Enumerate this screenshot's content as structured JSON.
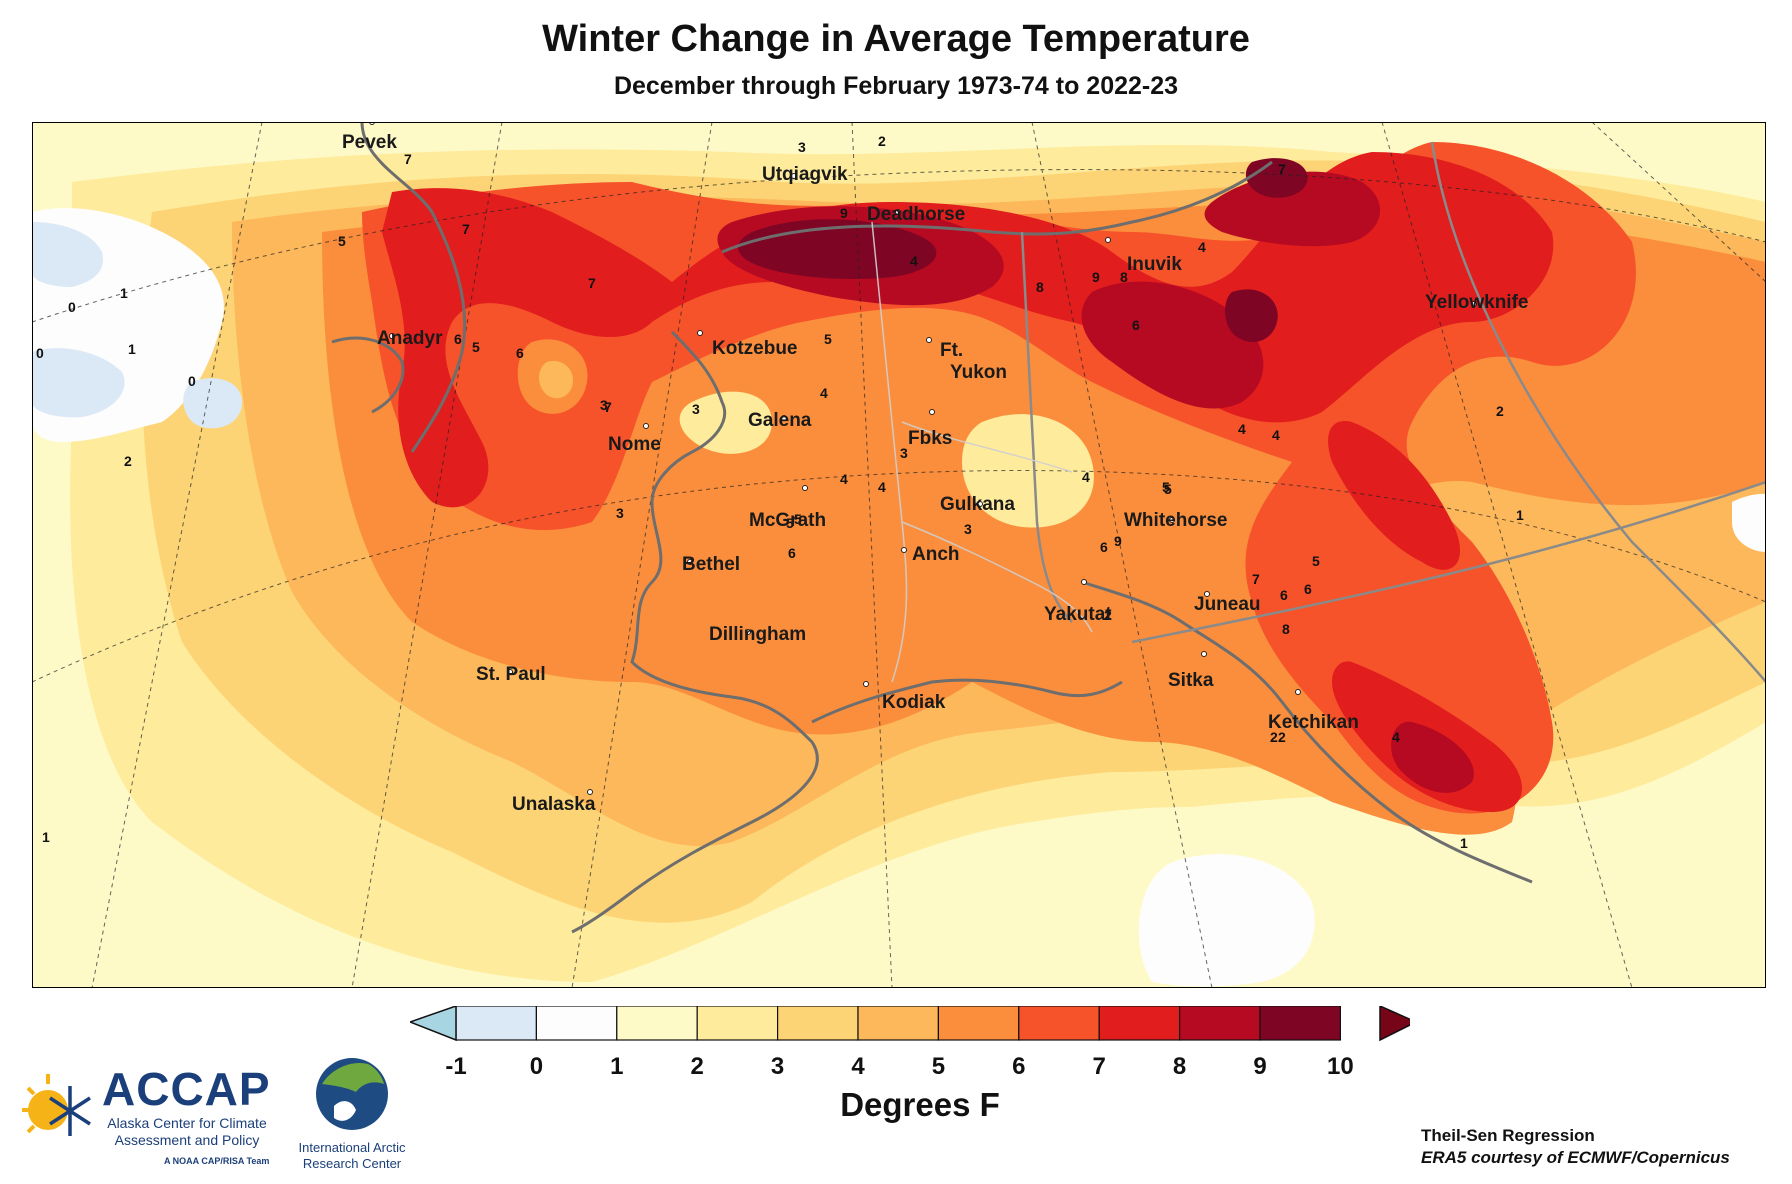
{
  "header": {
    "title": "Winter Change in Average Temperature",
    "subtitle": "December through February 1973-74 to 2022-23"
  },
  "cities": [
    {
      "name": "Pevek"
    },
    {
      "name": "Utqiagvik"
    },
    {
      "name": "Deadhorse"
    },
    {
      "name": "Inuvik"
    },
    {
      "name": "Yellowknife"
    },
    {
      "name": "Anadyr"
    },
    {
      "name": "Kotzebue"
    },
    {
      "name": "Ft."
    },
    {
      "name": "Yukon"
    },
    {
      "name": "Galena"
    },
    {
      "name": "Nome"
    },
    {
      "name": "Fbks"
    },
    {
      "name": "Gulkana"
    },
    {
      "name": "Whitehorse"
    },
    {
      "name": "McGrath"
    },
    {
      "name": "Bethel"
    },
    {
      "name": "Anch"
    },
    {
      "name": "Yakutat"
    },
    {
      "name": "Juneau"
    },
    {
      "name": "Dillingham"
    },
    {
      "name": "Sitka"
    },
    {
      "name": "St. Paul"
    },
    {
      "name": "Kodiak"
    },
    {
      "name": "Ketchikan"
    },
    {
      "name": "Unalaska"
    }
  ],
  "contour_labels": [
    "0",
    "1",
    "0",
    "1",
    "0",
    "2",
    "5",
    "7",
    "7",
    "6",
    "5",
    "7",
    "6",
    "7",
    "3",
    "3",
    "3",
    "3",
    "9",
    "2",
    "4",
    "5",
    "4",
    "4",
    "3",
    "4",
    "4",
    "5",
    "6",
    "5",
    "3",
    "2",
    "6",
    "8",
    "9",
    "8",
    "7",
    "5",
    "6",
    "4",
    "4",
    "5",
    "6",
    "9",
    "7",
    "6",
    "8",
    "5",
    "4",
    "2",
    "2",
    "1",
    "1",
    "2",
    "4",
    "1"
  ],
  "legend": {
    "units_label": "Degrees F",
    "ticks": [
      "-1",
      "0",
      "1",
      "2",
      "3",
      "4",
      "5",
      "6",
      "7",
      "8",
      "9",
      "10"
    ],
    "colors": [
      "#dbe9f6",
      "#fdfdfd",
      "#fefac8",
      "#feeb9c",
      "#fdd475",
      "#fcb85a",
      "#fb8e3c",
      "#f6532b",
      "#e21d1d",
      "#b60a22",
      "#7e0524"
    ],
    "under_color": "#a8d5e2",
    "over_color": "#760518"
  },
  "credits": {
    "method": "Theil-Sen Regression",
    "source": "ERA5 courtesy of ECMWF/Copernicus"
  },
  "logos": {
    "accap_name": "ACCAP",
    "accap_line1": "Alaska Center for Climate",
    "accap_line2": "Assessment and Policy",
    "accap_tag": "A NOAA CAP/RISA Team",
    "iarc_line1": "International Arctic",
    "iarc_line2": "Research Center"
  }
}
